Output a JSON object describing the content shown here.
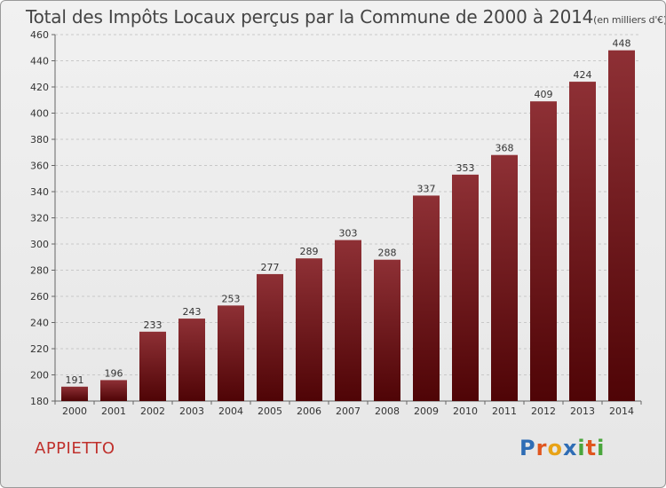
{
  "chart_data": {
    "type": "bar",
    "title": "Total des Impôts Locaux perçus par la Commune de 2000 à 2014",
    "unit_note": "(en milliers d'€)",
    "categories": [
      "2000",
      "2001",
      "2002",
      "2003",
      "2004",
      "2005",
      "2006",
      "2007",
      "2008",
      "2009",
      "2010",
      "2011",
      "2012",
      "2013",
      "2014"
    ],
    "values": [
      191,
      196,
      233,
      243,
      253,
      277,
      289,
      303,
      288,
      337,
      353,
      368,
      409,
      424,
      448
    ],
    "ylim": [
      180,
      460
    ],
    "yticks": [
      180,
      200,
      220,
      240,
      260,
      280,
      300,
      320,
      340,
      360,
      380,
      400,
      420,
      440,
      460
    ],
    "xlabel": "",
    "ylabel": "",
    "grid": "horizontal dashed",
    "bar_color": "#6e1218"
  },
  "commune": "APPIETTO",
  "logo": {
    "letters": [
      "P",
      "r",
      "o",
      "x",
      "i",
      "t",
      "i"
    ],
    "colors": [
      "#2f6db5",
      "#e0561f",
      "#e8a317",
      "#2f6db5",
      "#4aa63c",
      "#e0561f",
      "#4aa63c"
    ]
  }
}
